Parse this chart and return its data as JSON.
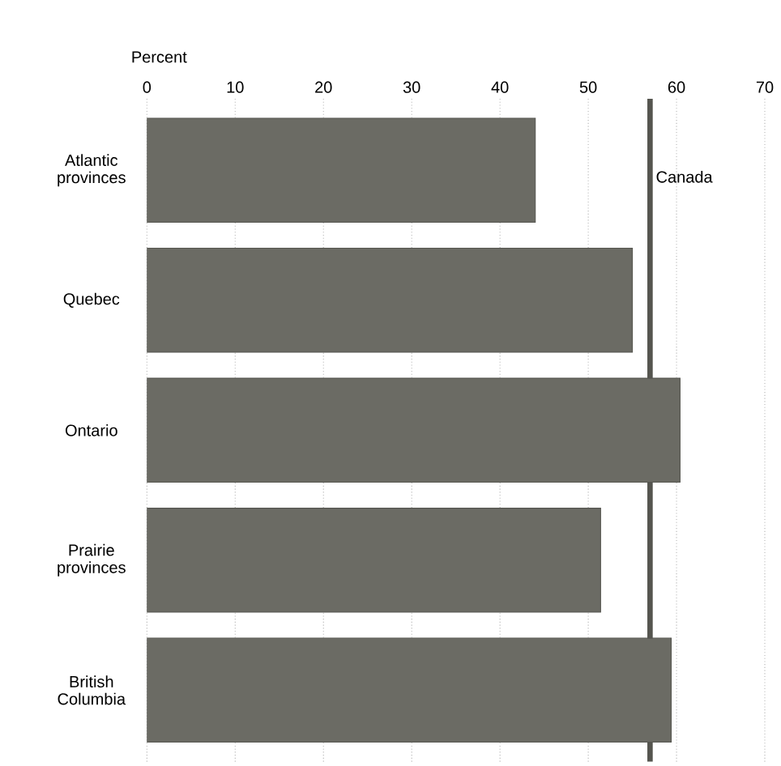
{
  "chart_data": {
    "type": "bar",
    "orientation": "horizontal",
    "xlabel": "Percent",
    "categories": [
      "Atlantic provinces",
      "Quebec",
      "Ontario",
      "Prairie provinces",
      "British Columbia"
    ],
    "values": [
      44,
      55,
      60.4,
      51.4,
      59.4
    ],
    "color": "#6b6b64",
    "xlim": [
      0,
      70
    ],
    "xticks": [
      0,
      10,
      20,
      30,
      40,
      50,
      60,
      70
    ],
    "grid": "x",
    "ref_lines": [
      {
        "axis": "x",
        "value": 57,
        "label": "Canada",
        "color": "#55554f"
      }
    ]
  }
}
